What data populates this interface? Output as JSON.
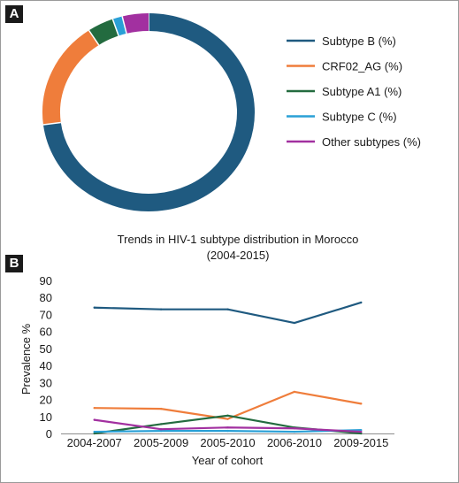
{
  "panels": {
    "a_label": "A",
    "b_label": "B"
  },
  "chart_data": [
    {
      "type": "pie",
      "variant": "donut",
      "categories": [
        "Subtype B (%)",
        "CRF02_AG (%)",
        "Subtype A1 (%)",
        "Subtype C (%)",
        "Other subtypes (%)"
      ],
      "values": [
        73,
        17.5,
        4,
        1.5,
        4
      ],
      "colors": [
        "#1f5a80",
        "#ef7d3b",
        "#236b3f",
        "#2aa0d6",
        "#a230a0"
      ],
      "legend": "right"
    },
    {
      "type": "line",
      "title_lines": [
        "Trends in HIV-1 subtype distribution in Morocco",
        "(2004-2015)"
      ],
      "xlabel": "Year of cohort",
      "ylabel": "Prevalence %",
      "categories": [
        "2004-2007",
        "2005-2009",
        "2005-2010",
        "2006-2010",
        "2009-2015"
      ],
      "ylim": [
        0,
        90
      ],
      "yticks": [
        0,
        10,
        20,
        30,
        40,
        50,
        60,
        70,
        80,
        90
      ],
      "grid": false,
      "series": [
        {
          "name": "Subtype B (%)",
          "color": "#1f5a80",
          "values": [
            74,
            73,
            73,
            65,
            77
          ]
        },
        {
          "name": "CRF02_AG (%)",
          "color": "#ef7d3b",
          "values": [
            15,
            14.5,
            8.5,
            24.5,
            17.5
          ]
        },
        {
          "name": "Subtype A1 (%)",
          "color": "#236b3f",
          "values": [
            0,
            5.5,
            10.5,
            3.5,
            0
          ]
        },
        {
          "name": "Subtype C (%)",
          "color": "#2aa0d6",
          "values": [
            1,
            1.5,
            1.5,
            1,
            2
          ]
        },
        {
          "name": "Other subtypes (%)",
          "color": "#a230a0",
          "values": [
            8,
            2.5,
            3.5,
            3,
            1
          ]
        }
      ]
    }
  ]
}
